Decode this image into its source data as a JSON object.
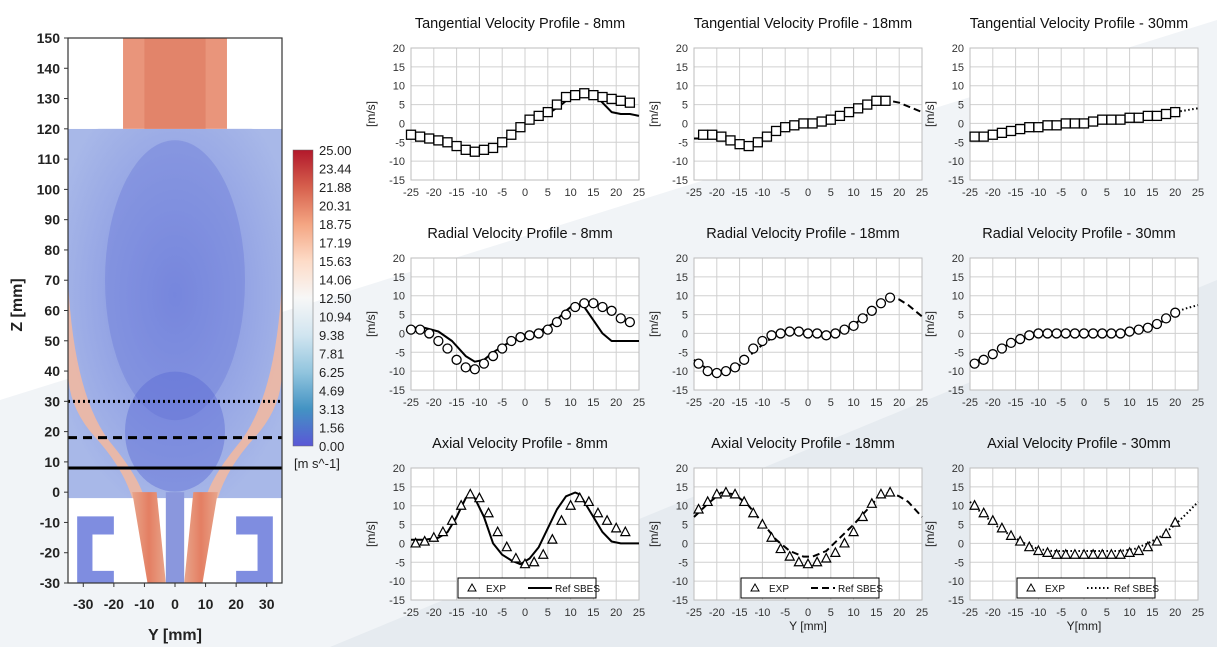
{
  "contour": {
    "xlabel": "Y [mm]",
    "ylabel": "Z [mm]",
    "yticks": [
      "150",
      "140",
      "130",
      "120",
      "110",
      "100",
      "90",
      "80",
      "70",
      "60",
      "50",
      "40",
      "30",
      "20",
      "10",
      "0",
      "-10",
      "-20",
      "-30"
    ],
    "xticks": [
      "-30",
      "-20",
      "-10",
      "0",
      "10",
      "20",
      "30"
    ],
    "colorbar_labels": [
      "25.00",
      "23.44",
      "21.88",
      "20.31",
      "18.75",
      "17.19",
      "15.63",
      "14.06",
      "12.50",
      "10.94",
      "9.38",
      "7.81",
      "6.25",
      "4.69",
      "3.13",
      "1.56",
      "0.00"
    ],
    "colorbar_unit": "[m s^-1]",
    "colorbar_colors": [
      "#b2182b",
      "#d6604d",
      "#f4a582",
      "#fddbc7",
      "#f7f7f7",
      "#d1e5f0",
      "#92c5de",
      "#4393c3",
      "#5a57d6"
    ],
    "probe_lines": [
      {
        "z_mm": 30,
        "style": "dotted"
      },
      {
        "z_mm": 18,
        "style": "dashed"
      },
      {
        "z_mm": 8,
        "style": "solid"
      }
    ]
  },
  "chart_data": [
    {
      "type": "line",
      "title": "Tangential Velocity Profile - 8mm",
      "ylabel": "[m/s]",
      "xlabel": "",
      "xlim": [
        -25,
        25
      ],
      "ylim": [
        -15,
        20
      ],
      "grid": true,
      "series": [
        {
          "role": "exp",
          "marker": "square",
          "x": [
            -25,
            -23,
            -21,
            -19,
            -17,
            -15,
            -13,
            -11,
            -9,
            -7,
            -5,
            -3,
            -1,
            1,
            3,
            5,
            7,
            9,
            11,
            13,
            15,
            17,
            19,
            21,
            23
          ],
          "y": [
            -3,
            -3.5,
            -4,
            -4.5,
            -5,
            -6,
            -7,
            -7.5,
            -7,
            -6.5,
            -5,
            -3,
            -1,
            1,
            2,
            3,
            5,
            7,
            7.5,
            8,
            7.5,
            7,
            6.5,
            6,
            5.5
          ]
        },
        {
          "role": "ref",
          "line": "solid",
          "x": [
            -25,
            -22,
            -19,
            -16,
            -13,
            -11,
            -9,
            -7,
            -5,
            -2,
            0,
            2,
            5,
            8,
            11,
            13,
            15,
            17,
            19,
            21,
            23,
            25
          ],
          "y": [
            -3,
            -3.5,
            -4.5,
            -5.5,
            -7.5,
            -8,
            -7.5,
            -6.5,
            -5,
            -2,
            0,
            1,
            2.5,
            5,
            8,
            9,
            8,
            5.5,
            3,
            2.5,
            2.5,
            2
          ]
        }
      ]
    },
    {
      "type": "line",
      "title": "Tangential Velocity Profile - 18mm",
      "ylabel": "[m/s]",
      "xlabel": "",
      "xlim": [
        -25,
        25
      ],
      "ylim": [
        -15,
        20
      ],
      "grid": true,
      "series": [
        {
          "role": "exp",
          "marker": "square",
          "x": [
            -23,
            -21,
            -19,
            -17,
            -15,
            -13,
            -11,
            -9,
            -7,
            -5,
            -3,
            -1,
            1,
            3,
            5,
            7,
            9,
            11,
            13,
            15,
            17
          ],
          "y": [
            -3,
            -3,
            -3.5,
            -4.5,
            -5.5,
            -6,
            -5,
            -3.5,
            -2,
            -1,
            -0.5,
            0,
            0,
            0.5,
            1,
            2,
            3,
            4,
            5,
            6,
            6
          ]
        },
        {
          "role": "ref",
          "line": "dashed",
          "x": [
            -25,
            -21,
            -17,
            -14,
            -11,
            -8,
            -5,
            -2,
            1,
            4,
            7,
            10,
            13,
            16,
            18,
            20,
            22,
            25
          ],
          "y": [
            -4,
            -4,
            -5,
            -6,
            -5,
            -3,
            -1,
            0,
            0,
            0.5,
            1.5,
            3,
            4.5,
            6,
            6,
            5.5,
            4.5,
            3
          ]
        }
      ]
    },
    {
      "type": "line",
      "title": "Tangential Velocity Profile - 30mm",
      "ylabel": "[m/s]",
      "xlabel": "",
      "xlim": [
        -25,
        25
      ],
      "ylim": [
        -15,
        20
      ],
      "grid": true,
      "series": [
        {
          "role": "exp",
          "marker": "square",
          "x": [
            -24,
            -22,
            -20,
            -18,
            -16,
            -14,
            -12,
            -10,
            -8,
            -6,
            -4,
            -2,
            0,
            2,
            4,
            6,
            8,
            10,
            12,
            14,
            16,
            18,
            20
          ],
          "y": [
            -3.5,
            -3.5,
            -3,
            -2.5,
            -2,
            -1.5,
            -1,
            -1,
            -0.5,
            -0.5,
            0,
            0,
            0,
            0.5,
            1,
            1,
            1,
            1.5,
            1.5,
            2,
            2,
            2.5,
            3
          ]
        },
        {
          "role": "ref",
          "line": "dotted",
          "x": [
            -25,
            -20,
            -15,
            -10,
            -5,
            0,
            5,
            10,
            15,
            20,
            25
          ],
          "y": [
            -3.5,
            -3,
            -2,
            -1,
            -0.5,
            0.5,
            1,
            1.5,
            2,
            3,
            4
          ]
        }
      ]
    },
    {
      "type": "line",
      "title": "Radial Velocity Profile - 8mm",
      "ylabel": "[m/s]",
      "xlabel": "",
      "xlim": [
        -25,
        25
      ],
      "ylim": [
        -15,
        20
      ],
      "grid": true,
      "series": [
        {
          "role": "exp",
          "marker": "circle",
          "x": [
            -25,
            -23,
            -21,
            -19,
            -17,
            -15,
            -13,
            -11,
            -9,
            -7,
            -5,
            -3,
            -1,
            1,
            3,
            5,
            7,
            9,
            11,
            13,
            15,
            17,
            19,
            21,
            23
          ],
          "y": [
            1,
            1,
            0,
            -2,
            -4,
            -7,
            -9,
            -9.5,
            -8,
            -6,
            -4,
            -2,
            -1,
            -0.5,
            0,
            1,
            3,
            5,
            7,
            8,
            8,
            7,
            6,
            4,
            3
          ]
        },
        {
          "role": "ref",
          "line": "solid",
          "x": [
            -25,
            -22,
            -19,
            -16,
            -13,
            -11,
            -9,
            -7,
            -5,
            -3,
            0,
            3,
            6,
            9,
            11,
            13,
            15,
            17,
            19,
            21,
            23,
            25
          ],
          "y": [
            1.5,
            1.5,
            0.5,
            -2,
            -6,
            -7.5,
            -7,
            -5,
            -3.5,
            -2,
            -1,
            0.5,
            2.5,
            6,
            8,
            7,
            3.5,
            0,
            -2,
            -2,
            -2,
            -2
          ]
        }
      ]
    },
    {
      "type": "line",
      "title": "Radial Velocity Profile - 18mm",
      "ylabel": "[m/s]",
      "xlabel": "",
      "xlim": [
        -25,
        25
      ],
      "ylim": [
        -15,
        20
      ],
      "grid": true,
      "series": [
        {
          "role": "exp",
          "marker": "circle",
          "x": [
            -24,
            -22,
            -20,
            -18,
            -16,
            -14,
            -12,
            -10,
            -8,
            -6,
            -4,
            -2,
            0,
            2,
            4,
            6,
            8,
            10,
            12,
            14,
            16,
            18
          ],
          "y": [
            -8,
            -10,
            -10.5,
            -10,
            -9,
            -7,
            -4,
            -2,
            -0.5,
            0,
            0.5,
            0.5,
            0,
            0,
            -0.5,
            0,
            1,
            2,
            4,
            6,
            8,
            9.5
          ]
        },
        {
          "role": "ref",
          "line": "dashed",
          "x": [
            -25,
            -22,
            -20,
            -18,
            -15,
            -12,
            -9,
            -6,
            -3,
            0,
            3,
            6,
            9,
            12,
            15,
            18,
            20,
            22,
            25
          ],
          "y": [
            -7,
            -9.5,
            -10,
            -10,
            -8.5,
            -5,
            -2,
            0,
            0.5,
            0.5,
            0,
            0.5,
            1.5,
            4,
            7,
            9.5,
            9,
            7.5,
            4.5
          ]
        }
      ]
    },
    {
      "type": "line",
      "title": "Radial Velocity Profile - 30mm",
      "ylabel": "[m/s]",
      "xlabel": "",
      "xlim": [
        -25,
        25
      ],
      "ylim": [
        -15,
        20
      ],
      "grid": true,
      "series": [
        {
          "role": "exp",
          "marker": "circle",
          "x": [
            -24,
            -22,
            -20,
            -18,
            -16,
            -14,
            -12,
            -10,
            -8,
            -6,
            -4,
            -2,
            0,
            2,
            4,
            6,
            8,
            10,
            12,
            14,
            16,
            18,
            20
          ],
          "y": [
            -8,
            -7,
            -5.5,
            -4,
            -2.5,
            -1.5,
            -0.5,
            0,
            0,
            0,
            0,
            0,
            0,
            0,
            0,
            0,
            0,
            0.5,
            1,
            1.5,
            2.5,
            4,
            5.5
          ]
        },
        {
          "role": "ref",
          "line": "dotted",
          "x": [
            -25,
            -22,
            -19,
            -16,
            -13,
            -10,
            -7,
            -4,
            -1,
            2,
            5,
            8,
            11,
            14,
            17,
            20,
            22,
            25
          ],
          "y": [
            -8,
            -6.5,
            -4.5,
            -2.5,
            -1,
            0,
            0,
            0,
            0,
            0,
            0,
            0,
            0.5,
            1.5,
            3,
            5.5,
            6.5,
            7.5
          ]
        }
      ]
    },
    {
      "type": "line",
      "title": "Axial Velocity Profile - 8mm",
      "ylabel": "[m/s]",
      "xlabel": "",
      "xlim": [
        -25,
        25
      ],
      "ylim": [
        -15,
        20
      ],
      "grid": true,
      "legend": {
        "entries": [
          "EXP",
          "Ref SBES"
        ],
        "position": "bottom"
      },
      "series": [
        {
          "role": "exp",
          "name": "EXP",
          "marker": "triangle",
          "x": [
            -24,
            -22,
            -20,
            -18,
            -16,
            -14,
            -12,
            -10,
            -8,
            -6,
            -4,
            -2,
            0,
            2,
            4,
            6,
            8,
            10,
            12,
            14,
            16,
            18,
            20,
            22
          ],
          "y": [
            0,
            0.5,
            1.5,
            3,
            6,
            10,
            13,
            12,
            8,
            3,
            -1,
            -4,
            -5.5,
            -5,
            -3,
            1,
            6,
            10,
            12,
            11,
            8,
            6,
            4,
            3
          ]
        },
        {
          "role": "ref",
          "name": "Ref SBES",
          "line": "solid",
          "x": [
            -25,
            -22,
            -19,
            -17,
            -15,
            -13,
            -12,
            -11,
            -9,
            -7,
            -5,
            -3,
            -1,
            1,
            3,
            5,
            7,
            9,
            11,
            12,
            13,
            15,
            17,
            19,
            21,
            23,
            25
          ],
          "y": [
            1,
            1,
            1.5,
            3,
            7,
            12,
            13,
            12,
            7,
            0,
            -3,
            -4.5,
            -5.5,
            -4,
            -1,
            4,
            9,
            12.5,
            13.5,
            13,
            11,
            7,
            3,
            0.5,
            0,
            0,
            0
          ]
        }
      ]
    },
    {
      "type": "line",
      "title": "Axial Velocity Profile - 18mm",
      "ylabel": "[m/s]",
      "xlabel": "Y [mm]",
      "xlim": [
        -25,
        25
      ],
      "ylim": [
        -15,
        20
      ],
      "grid": true,
      "legend": {
        "entries": [
          "EXP",
          "Ref SBES"
        ],
        "position": "bottom"
      },
      "series": [
        {
          "role": "exp",
          "name": "EXP",
          "marker": "triangle",
          "x": [
            -24,
            -22,
            -20,
            -18,
            -16,
            -14,
            -12,
            -10,
            -8,
            -6,
            -4,
            -2,
            0,
            2,
            4,
            6,
            8,
            10,
            12,
            14,
            16,
            18
          ],
          "y": [
            9,
            11,
            13,
            13.5,
            13,
            11,
            8,
            5,
            1.5,
            -1.5,
            -3.5,
            -5,
            -5.5,
            -5,
            -4,
            -2.5,
            0,
            3,
            7,
            10.5,
            13,
            13.5
          ]
        },
        {
          "role": "ref",
          "name": "Ref SBES",
          "line": "dashed",
          "x": [
            -25,
            -22,
            -19,
            -16,
            -13,
            -10,
            -7,
            -4,
            -1,
            1,
            4,
            7,
            10,
            13,
            16,
            18,
            20,
            22,
            25
          ],
          "y": [
            7,
            10.5,
            13.5,
            13,
            10,
            5.5,
            1,
            -2,
            -3.5,
            -3.5,
            -2,
            1.5,
            5,
            9,
            13,
            13.5,
            12.5,
            11,
            7
          ]
        }
      ]
    },
    {
      "type": "line",
      "title": "Axial Velocity Profile - 30mm",
      "ylabel": "[m/s]",
      "xlabel": "Y[mm]",
      "xlim": [
        -25,
        25
      ],
      "ylim": [
        -15,
        20
      ],
      "grid": true,
      "legend": {
        "entries": [
          "EXP",
          "Ref SBES"
        ],
        "position": "bottom"
      },
      "series": [
        {
          "role": "exp",
          "name": "EXP",
          "marker": "triangle",
          "x": [
            -24,
            -22,
            -20,
            -18,
            -16,
            -14,
            -12,
            -10,
            -8,
            -6,
            -4,
            -2,
            0,
            2,
            4,
            6,
            8,
            10,
            12,
            14,
            16,
            18,
            20
          ],
          "y": [
            10,
            8,
            6,
            4,
            2,
            0.5,
            -1,
            -2,
            -2.5,
            -3,
            -3,
            -3,
            -3,
            -3,
            -3,
            -3,
            -3,
            -2.5,
            -2,
            -1,
            0.5,
            2.5,
            5.5
          ]
        },
        {
          "role": "ref",
          "name": "Ref SBES",
          "line": "dotted",
          "x": [
            -25,
            -22,
            -19,
            -16,
            -13,
            -10,
            -7,
            -4,
            -1,
            2,
            5,
            8,
            11,
            14,
            17,
            20,
            23,
            25
          ],
          "y": [
            11,
            7.5,
            4.5,
            2,
            0,
            -1.5,
            -2,
            -2,
            -2,
            -2,
            -2,
            -2,
            -1.5,
            0,
            2,
            5,
            8.5,
            11
          ]
        }
      ]
    }
  ],
  "yticks_profile": [
    "20",
    "15",
    "10",
    "5",
    "0",
    "-5",
    "-10",
    "-15"
  ],
  "xticks_profile": [
    "-25",
    "-20",
    "-15",
    "-10",
    "-5",
    "0",
    "5",
    "10",
    "15",
    "20",
    "25"
  ]
}
